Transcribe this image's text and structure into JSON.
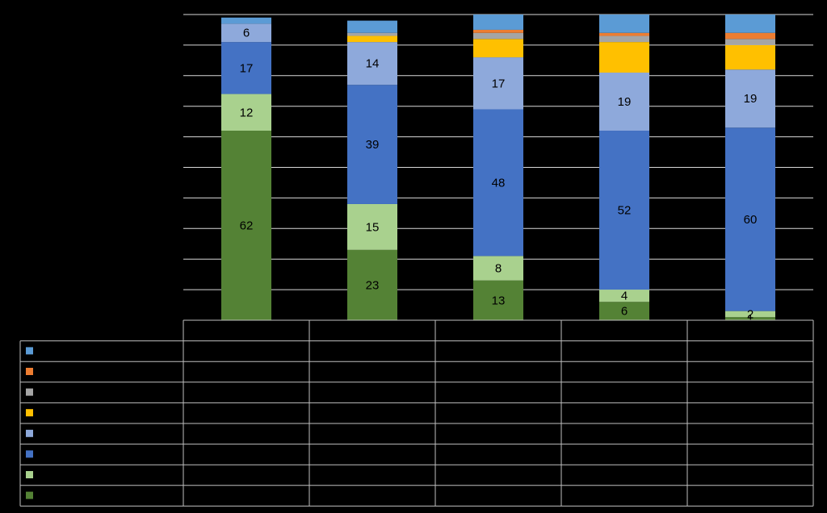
{
  "chart_data": {
    "type": "bar",
    "stacked": true,
    "categories": [
      "",
      "",
      "",
      "",
      ""
    ],
    "ylim": [
      0,
      100
    ],
    "grid": true,
    "legend": "table-left",
    "series": [
      {
        "key": "s1",
        "name": "",
        "color": "#548235",
        "values": [
          62,
          23,
          13,
          6,
          1
        ],
        "labels": [
          "62",
          "23",
          "13",
          "6",
          "1"
        ]
      },
      {
        "key": "s2",
        "name": "",
        "color": "#A9D18E",
        "values": [
          12,
          15,
          8,
          4,
          2
        ],
        "labels": [
          "12",
          "15",
          "8",
          "4",
          "2"
        ]
      },
      {
        "key": "s3",
        "name": "",
        "color": "#4472C4",
        "values": [
          17,
          39,
          48,
          52,
          60
        ],
        "labels": [
          "17",
          "39",
          "48",
          "52",
          "60"
        ]
      },
      {
        "key": "s4",
        "name": "",
        "color": "#8EA9DB",
        "values": [
          6,
          14,
          17,
          19,
          19
        ],
        "labels": [
          "6",
          "14",
          "17",
          "19",
          "19"
        ]
      },
      {
        "key": "s5",
        "name": "",
        "color": "#FFC000",
        "values": [
          0,
          2,
          6,
          10,
          8
        ],
        "labels": [
          "",
          "",
          "",
          "",
          ""
        ]
      },
      {
        "key": "s6",
        "name": "",
        "color": "#A5A5A5",
        "values": [
          0,
          1,
          2,
          2,
          2
        ],
        "labels": [
          "",
          "",
          "",
          "",
          ""
        ]
      },
      {
        "key": "s7",
        "name": "",
        "color": "#ED7D31",
        "values": [
          0,
          0,
          1,
          1,
          2
        ],
        "labels": [
          "",
          "",
          "",
          "",
          ""
        ]
      },
      {
        "key": "s8",
        "name": "",
        "color": "#5B9BD5",
        "values": [
          2,
          4,
          5,
          6,
          6
        ],
        "labels": [
          "",
          "",
          "",
          "",
          ""
        ]
      }
    ]
  }
}
